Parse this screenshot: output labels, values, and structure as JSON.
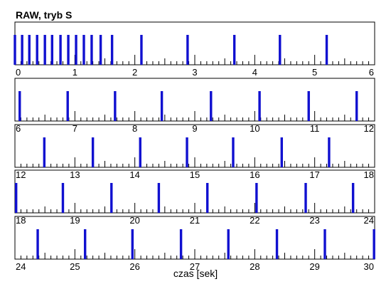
{
  "chart_data": {
    "type": "timeline",
    "title": "RAW, tryb S",
    "xlabel": "czas [sek]",
    "colors": {
      "marker": "#1010d0",
      "axis": "#000000"
    },
    "rows": [
      {
        "xlim": [
          0,
          6
        ],
        "tick_labels": [
          "0",
          "1",
          "2",
          "3",
          "4",
          "5",
          "6"
        ],
        "events": [
          0.0,
          0.12,
          0.24,
          0.37,
          0.5,
          0.62,
          0.76,
          0.89,
          1.02,
          1.15,
          1.28,
          1.43,
          1.62,
          2.11,
          2.88,
          3.66,
          4.42,
          5.2
        ]
      },
      {
        "xlim": [
          6,
          12
        ],
        "tick_labels": [
          "6",
          "7",
          "8",
          "9",
          "10",
          "11",
          "12"
        ],
        "events": [
          6.08,
          6.88,
          7.67,
          8.45,
          9.27,
          10.08,
          10.9,
          11.7
        ]
      },
      {
        "xlim": [
          12,
          18
        ],
        "tick_labels": [
          "12",
          "13",
          "14",
          "15",
          "16",
          "17",
          "18"
        ],
        "events": [
          12.49,
          13.3,
          14.09,
          14.87,
          15.64,
          16.45,
          17.24
        ]
      },
      {
        "xlim": [
          18,
          24
        ],
        "tick_labels": [
          "18",
          "19",
          "20",
          "21",
          "22",
          "23",
          "24"
        ],
        "events": [
          18.02,
          18.8,
          19.61,
          20.4,
          21.21,
          22.03,
          22.85,
          23.64
        ]
      },
      {
        "xlim": [
          24,
          30
        ],
        "tick_labels": [
          "24",
          "25",
          "26",
          "27",
          "28",
          "29",
          "30"
        ],
        "events": [
          24.38,
          25.17,
          25.96,
          26.77,
          27.56,
          28.37,
          29.17,
          29.99
        ]
      }
    ]
  }
}
